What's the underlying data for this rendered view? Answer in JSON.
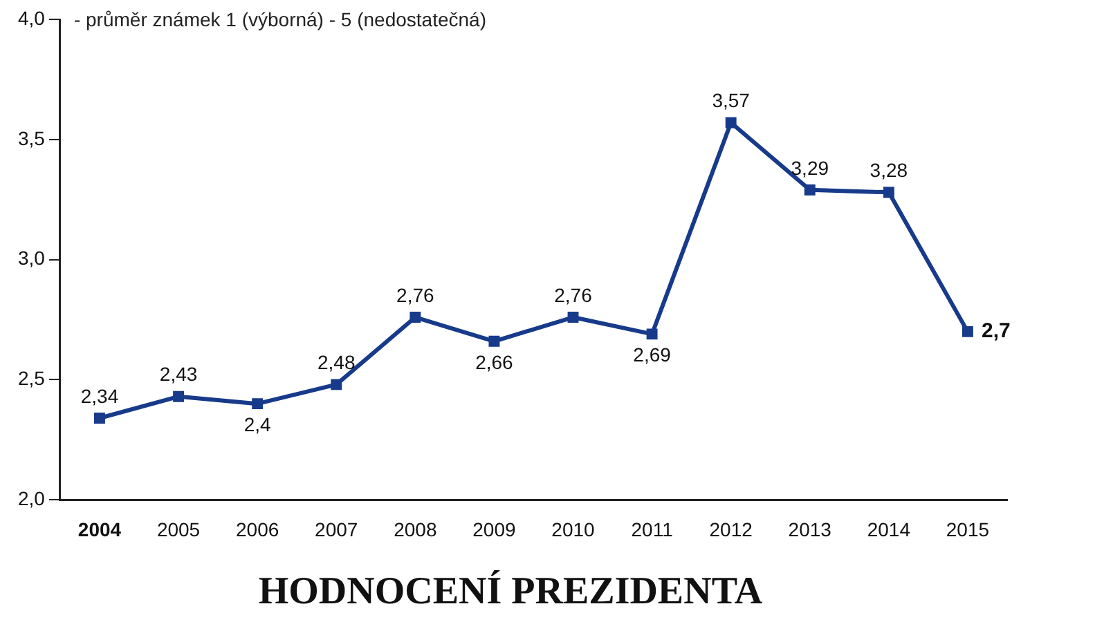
{
  "chart_data": {
    "type": "line",
    "title": "HODNOCENÍ PREZIDENTA",
    "subtitle": "- průměr známek 1 (výborná) - 5 (nedostatečná)",
    "categories": [
      "2004",
      "2005",
      "2006",
      "2007",
      "2008",
      "2009",
      "2010",
      "2011",
      "2012",
      "2013",
      "2014",
      "2015"
    ],
    "series": [
      {
        "color": "#173a8a",
        "values": [
          2.34,
          2.43,
          2.4,
          2.48,
          2.76,
          2.66,
          2.76,
          2.69,
          3.57,
          3.29,
          3.28,
          2.7
        ],
        "value_labels": [
          "2,34",
          "2,43",
          "2,4",
          "2,48",
          "2,76",
          "2,66",
          "2,76",
          "2,69",
          "3,57",
          "3,29",
          "3,28",
          "2,7"
        ]
      }
    ],
    "ylim": [
      2,
      4
    ],
    "yticks": [
      {
        "value": 2,
        "label": "2,0"
      },
      {
        "value": 2.5,
        "label": "2,5"
      },
      {
        "value": 3,
        "label": "3,0"
      },
      {
        "value": 3.5,
        "label": "3,5"
      },
      {
        "value": 4,
        "label": "4,0"
      }
    ],
    "grid": false,
    "legend": false,
    "marker": "square",
    "line_style": "solid"
  }
}
